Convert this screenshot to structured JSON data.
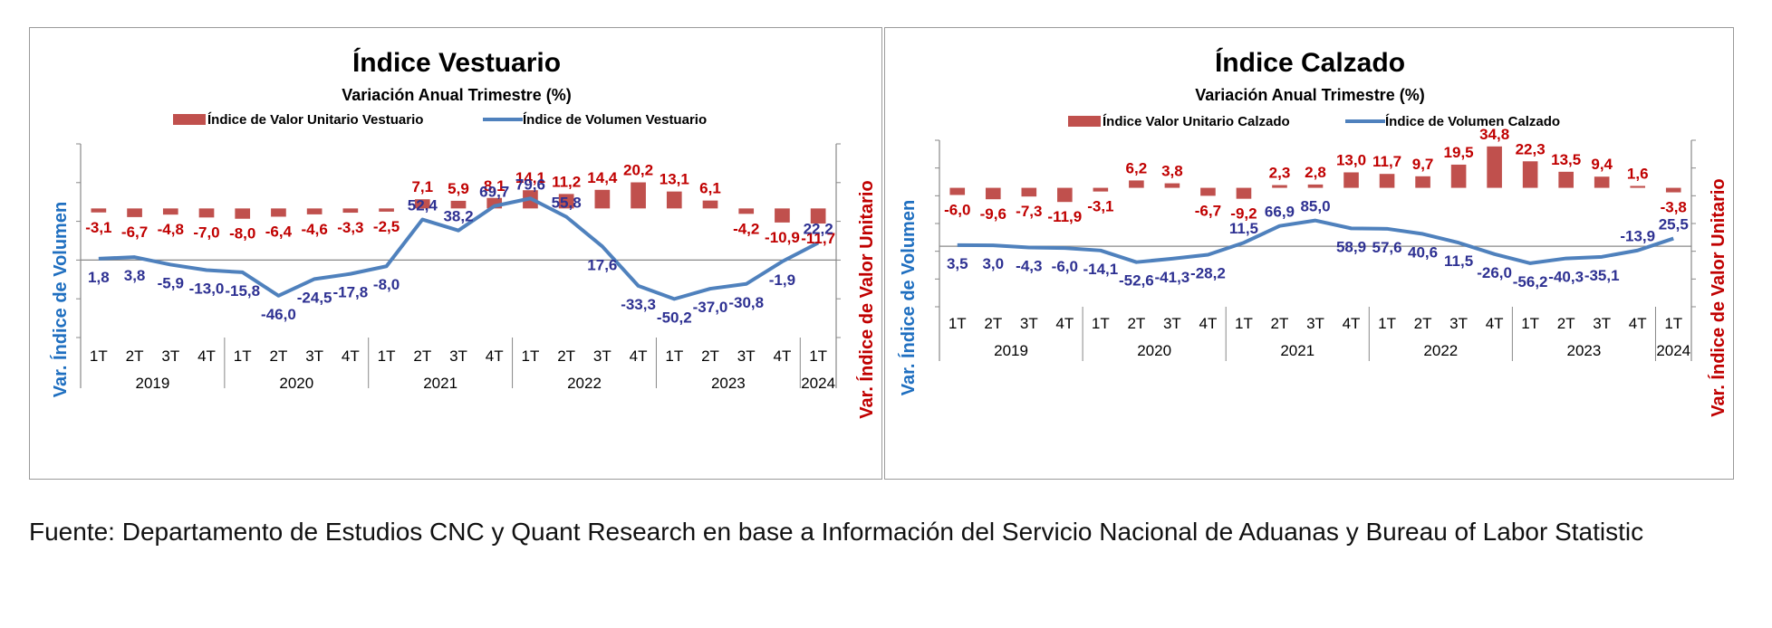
{
  "source_note": "Fuente: Departamento de Estudios CNC y Quant Research en base a Información del Servicio Nacional de Aduanas y Bureau of Labor Statistic",
  "colors": {
    "bar": "#c0504d",
    "line": "#4f81bd",
    "bar_label": "#c00000",
    "line_label": "#2e3192",
    "left_axis_title": "#1f6fc0",
    "right_axis_title": "#c00000"
  },
  "chart_data": [
    {
      "type": "bar+line",
      "title": "Índice Vestuario",
      "subtitle": "Variación Anual Trimestre  (%)",
      "legend": {
        "bar": "Índice de Valor Unitario Vestuario",
        "line": "Índice de Volumen Vestuario",
        "position": "top"
      },
      "ylabel_left": "Var. Índice de Volumen",
      "ylabel_right": "Var. Índice de Valor Unitario",
      "categories": [
        "1T",
        "2T",
        "3T",
        "4T",
        "1T",
        "2T",
        "3T",
        "4T",
        "1T",
        "2T",
        "3T",
        "4T",
        "1T",
        "2T",
        "3T",
        "4T",
        "1T",
        "2T",
        "3T",
        "4T",
        "1T"
      ],
      "years": [
        {
          "label": "2019",
          "count": 4
        },
        {
          "label": "2020",
          "count": 4
        },
        {
          "label": "2021",
          "count": 4
        },
        {
          "label": "2022",
          "count": 4
        },
        {
          "label": "2023",
          "count": 4
        },
        {
          "label": "2024",
          "count": 1
        }
      ],
      "bar_values": [
        -3.1,
        -6.7,
        -4.8,
        -7.0,
        -8.0,
        -6.4,
        -4.6,
        -3.3,
        -2.5,
        7.1,
        5.9,
        8.1,
        14.1,
        11.2,
        14.4,
        20.2,
        13.1,
        6.1,
        -4.2,
        -10.9,
        -11.7
      ],
      "bar_labels": [
        "-3,1",
        "-6,7",
        "-4,8",
        "-7,0",
        "-8,0",
        "-6,4",
        "-4,6",
        "-3,3",
        "-2,5",
        "7,1",
        "5,9",
        "8,1",
        "14,1",
        "11,2",
        "14,4",
        "20,2",
        "13,1",
        "6,1",
        "-4,2",
        "-10,9",
        "-11,7"
      ],
      "line_values": [
        1.8,
        3.8,
        -5.9,
        -13.0,
        -15.8,
        -46.0,
        -24.5,
        -17.8,
        -8.0,
        52.4,
        38.2,
        69.7,
        79.6,
        55.8,
        17.6,
        -33.3,
        -50.2,
        -37.0,
        -30.8,
        -1.9,
        22.2
      ],
      "line_labels": [
        "1,8",
        "3,8",
        "-5,9",
        "-13,0",
        "-15,8",
        "-46,0",
        "-24,5",
        "-17,8",
        "-8,0",
        "52,4",
        "38,2",
        "69,7",
        "79,6",
        "55,8",
        "17,6",
        "-33,3",
        "-50,2",
        "-37,0",
        "-30,8",
        "-1,9",
        "22,2"
      ],
      "ylim_left": [
        -100,
        150
      ],
      "ylim_right": [
        -100,
        50
      ],
      "grid": false
    },
    {
      "type": "bar+line",
      "title": "Índice Calzado",
      "subtitle": "Variación Anual Trimestre  (%)",
      "legend": {
        "bar": "Índice Valor Unitario Calzado",
        "line": "Índice de Volumen Calzado",
        "position": "top"
      },
      "ylabel_left": "Var. Índice de Volumen",
      "ylabel_right": "Var. Índice de Valor Unitario",
      "categories": [
        "1T",
        "2T",
        "3T",
        "4T",
        "1T",
        "2T",
        "3T",
        "4T",
        "1T",
        "2T",
        "3T",
        "4T",
        "1T",
        "2T",
        "3T",
        "4T",
        "1T",
        "2T",
        "3T",
        "4T",
        "1T"
      ],
      "years": [
        {
          "label": "2019",
          "count": 4
        },
        {
          "label": "2020",
          "count": 4
        },
        {
          "label": "2021",
          "count": 4
        },
        {
          "label": "2022",
          "count": 4
        },
        {
          "label": "2023",
          "count": 4
        },
        {
          "label": "2024",
          "count": 1
        }
      ],
      "bar_values": [
        -6.0,
        -9.6,
        -7.3,
        -11.9,
        -3.1,
        6.2,
        3.8,
        -6.7,
        -9.2,
        2.3,
        2.8,
        13.0,
        11.7,
        9.7,
        19.5,
        34.8,
        22.3,
        13.5,
        9.4,
        1.6,
        -3.8
      ],
      "bar_labels": [
        "-6,0",
        "-9,6",
        "-7,3",
        "-11,9",
        "-3,1",
        "6,2",
        "3,8",
        "-6,7",
        "-9,2",
        "2,3",
        "2,8",
        "13,0",
        "11,7",
        "9,7",
        "19,5",
        "34,8",
        "22,3",
        "13,5",
        "9,4",
        "1,6",
        "-3,8"
      ],
      "line_values": [
        3.5,
        3.0,
        -4.3,
        -6.0,
        -14.1,
        -52.6,
        -41.3,
        -28.2,
        11.5,
        66.9,
        85.0,
        58.9,
        57.6,
        40.6,
        11.5,
        -26.0,
        -56.2,
        -40.3,
        -35.1,
        -13.9,
        25.5
      ],
      "line_labels": [
        "3,5",
        "3,0",
        "-4,3",
        "-6,0",
        "-14,1",
        "-52,6",
        "-41,3",
        "-28,2",
        "11,5",
        "66,9",
        "85,0",
        "58,9",
        "57,6",
        "40,6",
        "11,5",
        "-26,0",
        "-56,2",
        "-40,3",
        "-35,1",
        "-13,9",
        "25,5"
      ],
      "ylim_left": [
        -200,
        350
      ],
      "ylim_right": [
        -100,
        40
      ],
      "grid": false
    }
  ]
}
